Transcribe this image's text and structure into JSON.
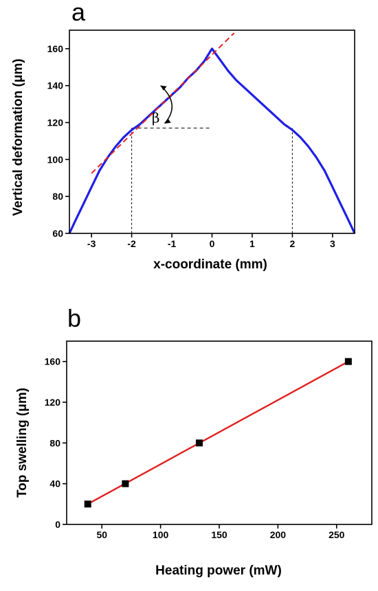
{
  "chart_data": [
    {
      "panel": "a",
      "type": "line",
      "xlabel": "x-coordinate (mm)",
      "ylabel": "Vertical deformation (μm)",
      "xlim": [
        -3.55,
        3.55
      ],
      "ylim": [
        60,
        170
      ],
      "xticks": [
        -3,
        -2,
        -1,
        0,
        1,
        2,
        3
      ],
      "yticks": [
        60,
        80,
        100,
        120,
        140,
        160
      ],
      "xtick_labels": [
        "-3",
        "-2",
        "-1",
        "0",
        "1",
        "2",
        "3"
      ],
      "ytick_labels": [
        "60",
        "80",
        "100",
        "120",
        "140",
        "160"
      ],
      "series": [
        {
          "color": "#1f1fe6",
          "x": [
            -3.55,
            -3.4,
            -3.2,
            -3.0,
            -2.8,
            -2.6,
            -2.4,
            -2.2,
            -2.0,
            -1.8,
            -1.5,
            -1.2,
            -1.0,
            -0.8,
            -0.6,
            -0.4,
            -0.2,
            0.0,
            0.2,
            0.4,
            0.6,
            0.8,
            1.0,
            1.2,
            1.5,
            1.8,
            2.0,
            2.2,
            2.4,
            2.6,
            2.8,
            3.0,
            3.2,
            3.4,
            3.55
          ],
          "y": [
            60,
            67,
            76,
            85,
            94,
            101,
            107,
            112,
            116,
            119,
            125,
            131,
            135,
            139,
            144,
            148,
            153,
            160,
            154,
            148,
            143,
            139,
            135,
            131,
            125,
            119,
            116,
            112,
            107,
            101,
            94,
            85,
            76,
            67,
            60
          ]
        }
      ],
      "tangent_line": {
        "color": "#e02020",
        "x": [
          -3.0,
          0.55
        ],
        "y": [
          92.5,
          168.5
        ]
      },
      "reference_lines": {
        "vertical_x": [
          -2,
          2
        ],
        "horizontal": {
          "y": 117,
          "x": [
            -2,
            0
          ]
        }
      },
      "annotation": {
        "text": "β",
        "x": -1.4,
        "y": 120
      }
    },
    {
      "panel": "b",
      "type": "scatter",
      "xlabel": "Heating power (mW)",
      "ylabel": "Top swelling (μm)",
      "xlim": [
        20,
        280
      ],
      "ylim": [
        0,
        180
      ],
      "xticks": [
        50,
        100,
        150,
        200,
        250
      ],
      "yticks": [
        0,
        40,
        80,
        120,
        160
      ],
      "xtick_labels": [
        "50",
        "100",
        "150",
        "200",
        "250"
      ],
      "ytick_labels": [
        "0",
        "40",
        "80",
        "120",
        "160"
      ],
      "series": [
        {
          "color": "#000000",
          "x": [
            38,
            70,
            133,
            260
          ],
          "y": [
            20,
            40,
            80,
            160
          ]
        }
      ],
      "fit_line": {
        "color": "#e02020",
        "x": [
          38,
          260
        ],
        "y": [
          20,
          160
        ]
      }
    }
  ]
}
